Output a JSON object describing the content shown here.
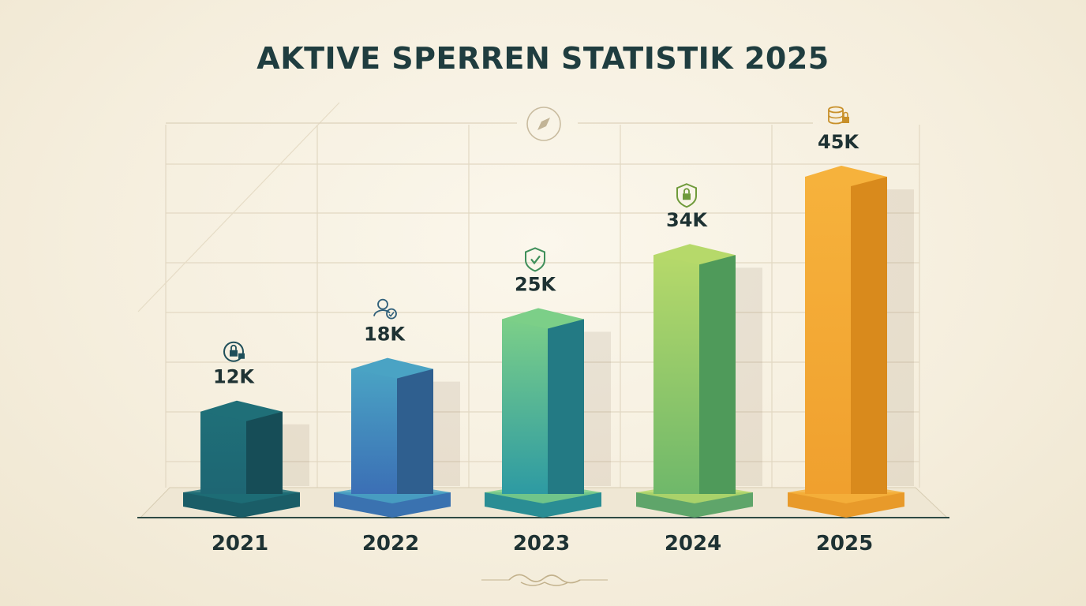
{
  "chart_data": {
    "type": "bar",
    "title": "AKTIVE SPERREN STATISTIK 2025",
    "categories": [
      "2021",
      "2022",
      "2023",
      "2024",
      "2025"
    ],
    "values": [
      12,
      18,
      25,
      34,
      45
    ],
    "value_labels": [
      "12K",
      "18K",
      "25K",
      "34K",
      "45K"
    ],
    "unit": "K",
    "ylim": [
      0,
      50
    ],
    "grid": true,
    "bar_icons": [
      "lock-icon",
      "user-check-icon",
      "shield-check-icon",
      "shield-lock-icon",
      "database-lock-icon"
    ],
    "colors": {
      "top": [
        "#1f6f78",
        "#4aa3c4",
        "#7ccf88",
        "#b6d96a",
        "#f6b23c"
      ],
      "front": [
        "#1e6673",
        "#3b6fb5",
        "#2d9aa3",
        "#6fb86a",
        "#f0a02e"
      ],
      "side": [
        "#164d57",
        "#2f5f8f",
        "#237a84",
        "#4f9a5a",
        "#d98a1c"
      ],
      "base": [
        "#1a5d67",
        "#3a72b0",
        "#2a8d94",
        "#5fa56a",
        "#e89a2a"
      ],
      "icon": [
        "#1f4f5a",
        "#2f5f7a",
        "#3f8f5a",
        "#6f9a3a",
        "#c8902a"
      ]
    }
  }
}
